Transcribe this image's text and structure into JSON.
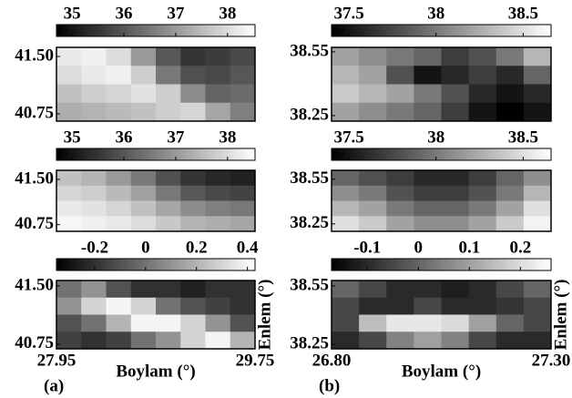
{
  "chart_data": [
    {
      "type": "heatmap",
      "clim": [
        34.7,
        38.53
      ],
      "cticks": [
        35,
        36,
        37,
        38
      ],
      "ylim": [
        40.655,
        41.62
      ],
      "yticks": [
        {
          "value": 41.5,
          "label": "41.50"
        },
        40.75
      ],
      "values": [
        [
          38.2,
          38.3,
          38.0,
          37.0,
          36.0,
          35.5,
          35.6,
          35.8
        ],
        [
          38.0,
          38.2,
          38.3,
          37.8,
          36.5,
          35.9,
          35.8,
          36.0
        ],
        [
          37.6,
          37.8,
          37.9,
          38.1,
          37.8,
          36.8,
          36.2,
          36.3
        ],
        [
          37.3,
          37.4,
          37.5,
          37.6,
          37.8,
          37.9,
          37.2,
          36.6
        ]
      ]
    },
    {
      "type": "heatmap",
      "clim": [
        34.7,
        38.53
      ],
      "cticks": [
        35,
        36,
        37,
        38
      ],
      "ylim": [
        40.64,
        41.65
      ],
      "yticks": [
        {
          "value": 41.5,
          "label": "41.50"
        },
        40.75
      ],
      "values": [
        [
          37.6,
          37.4,
          37.0,
          36.5,
          35.9,
          35.5,
          35.3,
          35.2
        ],
        [
          37.9,
          37.8,
          37.5,
          37.1,
          36.5,
          36.0,
          35.8,
          35.7
        ],
        [
          38.2,
          38.1,
          37.9,
          37.6,
          37.2,
          36.8,
          36.6,
          36.5
        ],
        [
          38.4,
          38.3,
          38.2,
          38.0,
          37.7,
          37.4,
          37.3,
          37.2
        ]
      ]
    },
    {
      "type": "heatmap",
      "clim": [
        -0.35,
        0.43
      ],
      "cticks": [
        -0.2,
        0,
        0.2,
        0.4
      ],
      "ylim": [
        40.69,
        41.57
      ],
      "yticks": [
        {
          "value": 41.5,
          "label": "41.50"
        },
        40.75
      ],
      "values": [
        [
          0.0,
          0.1,
          -0.1,
          -0.2,
          -0.2,
          -0.25,
          -0.2,
          -0.2
        ],
        [
          0.1,
          0.3,
          0.4,
          0.3,
          0.0,
          -0.1,
          -0.15,
          -0.2
        ],
        [
          -0.1,
          0.0,
          0.2,
          0.4,
          0.4,
          0.3,
          0.1,
          -0.1
        ],
        [
          -0.15,
          -0.2,
          -0.15,
          0.0,
          0.1,
          0.3,
          0.4,
          0.2
        ]
      ],
      "xlim": [
        27.95,
        29.75
      ],
      "xticks": [
        27.95,
        29.75
      ],
      "xlabel": "Boylam (°)",
      "ylabel": "Enlem (°)",
      "panel_label": "(a)"
    },
    {
      "type": "heatmap",
      "clim": [
        37.4,
        38.66
      ],
      "cticks": [
        37.5,
        38,
        38.5
      ],
      "ylim": [
        38.224,
        38.571
      ],
      "yticks": [
        38.55,
        38.25
      ],
      "values": [
        [
          38.2,
          38.1,
          38.0,
          37.9,
          37.7,
          37.8,
          38.0,
          38.3
        ],
        [
          38.3,
          38.2,
          37.8,
          37.5,
          37.6,
          37.7,
          37.6,
          37.9
        ],
        [
          38.4,
          38.3,
          38.2,
          38.0,
          37.8,
          37.6,
          37.5,
          37.6
        ],
        [
          38.2,
          38.1,
          38.0,
          37.9,
          37.7,
          37.5,
          37.4,
          37.5
        ]
      ]
    },
    {
      "type": "heatmap",
      "clim": [
        37.4,
        38.66
      ],
      "cticks": [
        37.5,
        38,
        38.5
      ],
      "ylim": [
        38.2,
        38.61
      ],
      "yticks": [
        38.55,
        38.25
      ],
      "values": [
        [
          37.9,
          37.8,
          37.7,
          37.6,
          37.6,
          37.7,
          37.9,
          38.1
        ],
        [
          38.1,
          38.0,
          37.8,
          37.7,
          37.7,
          37.8,
          38.0,
          38.3
        ],
        [
          38.3,
          38.2,
          38.0,
          37.9,
          37.9,
          38.0,
          38.2,
          38.5
        ],
        [
          38.5,
          38.4,
          38.2,
          38.1,
          38.1,
          38.2,
          38.4,
          38.6
        ]
      ]
    },
    {
      "type": "heatmap",
      "clim": [
        -0.17,
        0.26
      ],
      "cticks": [
        -0.1,
        0,
        0.1,
        0.2
      ],
      "ylim": [
        38.227,
        38.578
      ],
      "yticks": [
        38.55,
        38.25
      ],
      "values": [
        [
          0.0,
          -0.05,
          -0.1,
          -0.1,
          -0.12,
          -0.1,
          -0.05,
          0.0
        ],
        [
          -0.05,
          -0.1,
          -0.1,
          -0.05,
          -0.1,
          -0.1,
          -0.08,
          -0.05
        ],
        [
          -0.05,
          0.15,
          0.22,
          0.22,
          0.2,
          0.1,
          0.0,
          -0.05
        ],
        [
          -0.1,
          -0.05,
          0.05,
          0.1,
          0.05,
          -0.05,
          -0.1,
          -0.1
        ]
      ],
      "xlim": [
        26.8,
        27.3
      ],
      "xticks": [
        {
          "value": 26.8,
          "label": "26.80"
        },
        {
          "value": 27.3,
          "label": "27.30"
        }
      ],
      "xlabel": "Boylam (°)",
      "ylabel": "Enlem (°)",
      "panel_label": "(b)"
    }
  ]
}
